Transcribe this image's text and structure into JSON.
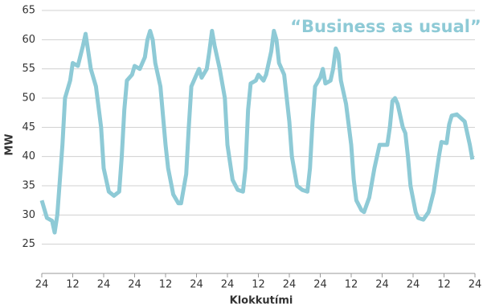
{
  "chart_data": {
    "type": "line",
    "annotation": "“Business as usual”",
    "xlabel": "Klokkutími",
    "ylabel": "MW",
    "color": "#8ecad6",
    "grid": true,
    "ylim": [
      20,
      65
    ],
    "yticks": [
      25,
      30,
      35,
      40,
      45,
      50,
      55,
      60,
      65
    ],
    "xlim": [
      0,
      168
    ],
    "xticks": [
      {
        "value": 0,
        "label": "24"
      },
      {
        "value": 12,
        "label": "12"
      },
      {
        "value": 24,
        "label": "24"
      },
      {
        "value": 36,
        "label": "24"
      },
      {
        "value": 48,
        "label": "12"
      },
      {
        "value": 60,
        "label": "24"
      },
      {
        "value": 72,
        "label": "24"
      },
      {
        "value": 84,
        "label": "12"
      },
      {
        "value": 96,
        "label": "24"
      },
      {
        "value": 108,
        "label": "24"
      },
      {
        "value": 120,
        "label": "12"
      },
      {
        "value": 132,
        "label": "24"
      },
      {
        "value": 144,
        "label": "24"
      },
      {
        "value": 156,
        "label": "12"
      },
      {
        "value": 168,
        "label": "24"
      }
    ],
    "x": [
      0,
      2,
      4,
      5,
      6,
      8,
      9,
      11,
      12,
      14,
      16,
      17,
      18,
      19,
      21,
      23,
      24,
      26,
      28,
      30,
      31,
      32,
      33,
      35,
      36,
      38,
      40,
      41,
      42,
      43,
      44,
      46,
      48,
      49,
      51,
      53,
      54,
      56,
      57,
      58,
      60,
      61,
      62,
      64,
      65,
      66,
      67,
      69,
      71,
      72,
      74,
      76,
      78,
      79,
      80,
      81,
      83,
      84,
      86,
      87,
      89,
      90,
      91,
      92,
      94,
      96,
      97,
      99,
      101,
      103,
      104,
      105,
      106,
      108,
      109,
      110,
      112,
      113,
      114,
      115,
      116,
      118,
      120,
      121,
      122,
      124,
      125,
      127,
      129,
      131,
      132,
      134,
      135,
      136,
      137,
      138,
      140,
      141,
      142,
      143,
      145,
      146,
      148,
      150,
      152,
      154,
      155,
      157,
      158,
      159,
      161,
      162,
      164,
      166,
      167
    ],
    "values": [
      32.5,
      29.5,
      29,
      27,
      30,
      42,
      50,
      53,
      56,
      55.5,
      59,
      61,
      58,
      55,
      52,
      45,
      38,
      34,
      33.3,
      34,
      40,
      48,
      53,
      54,
      55.5,
      55,
      57,
      60,
      61.5,
      60,
      56,
      52,
      42,
      38,
      33.5,
      32,
      32,
      37,
      45,
      52,
      54,
      55,
      53.5,
      55,
      58,
      61.5,
      59,
      55,
      50,
      42,
      36,
      34.3,
      34,
      38,
      48,
      52.5,
      53,
      54,
      53,
      54,
      58,
      61.5,
      60,
      56,
      54,
      46,
      40,
      35,
      34.3,
      34,
      38,
      46,
      52,
      53.5,
      55,
      52.5,
      53,
      55,
      58.5,
      57.5,
      53,
      49,
      42,
      36,
      32.5,
      30.8,
      30.5,
      33,
      38,
      42,
      42,
      42,
      45,
      49.5,
      50,
      49,
      45,
      44,
      40,
      35,
      30.5,
      29.5,
      29.2,
      30.5,
      34,
      40,
      42.5,
      42.3,
      45.5,
      47,
      47.2,
      46.8,
      46,
      42,
      39.5
    ]
  }
}
